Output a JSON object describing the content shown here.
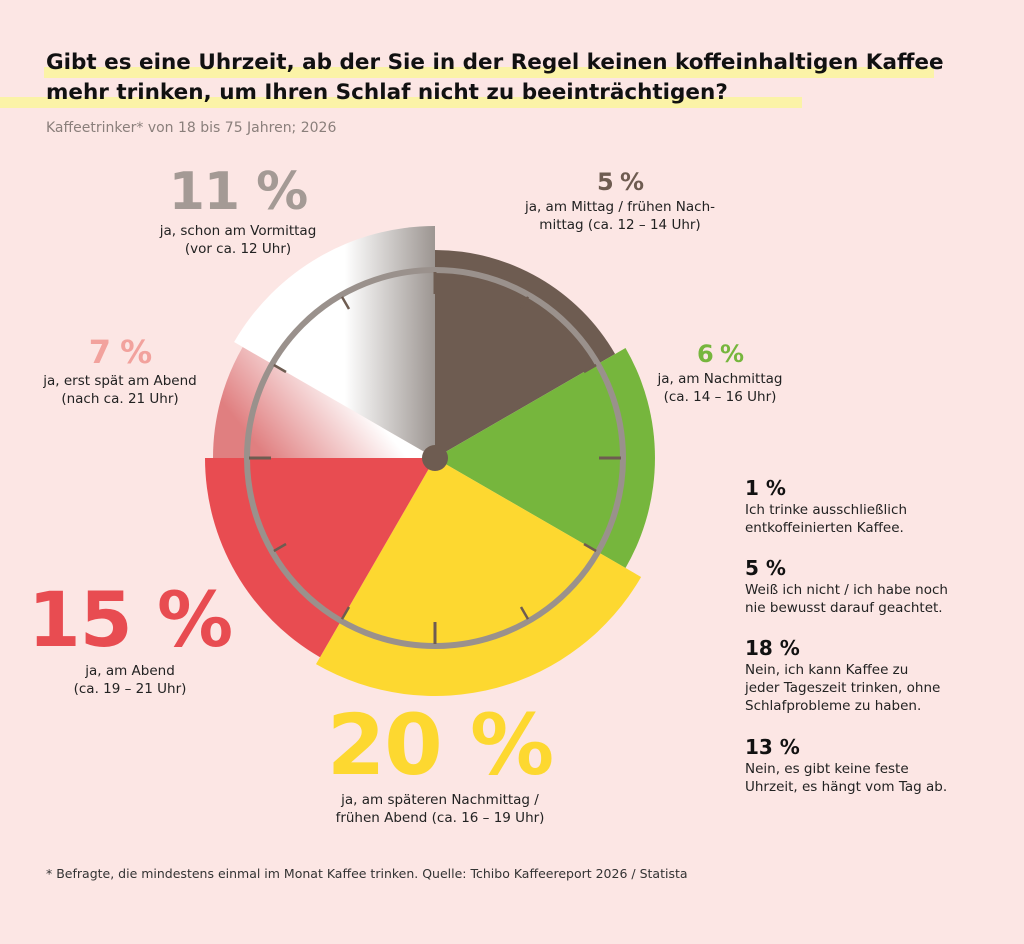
{
  "title_line1": "Gibt es eine Uhrzeit, ab der Sie in der Regel keinen koffeinhaltigen Kaffee",
  "title_line2": "mehr trinken, um Ihren Schlaf nicht zu beeinträchtigen?",
  "subtitle": "Kaffeetrinker* von 18 bis 75 Jahren; 2026",
  "footnote": "* Befragte, die mindestens einmal im Monat Kaffee trinken. Quelle: Tchibo Kaffeereport 2026 / Statista",
  "chart_data": {
    "type": "pie",
    "slices": [
      {
        "label": "5 %",
        "value": 5,
        "desc": "ja, am Mittag / frühen Nach-\nmittag (ca. 12 – 14 Uhr)",
        "color": "#6e5c51"
      },
      {
        "label": "6 %",
        "value": 6,
        "desc": "ja, am Nachmittag\n(ca. 14 – 16 Uhr)",
        "color": "#76b63d"
      },
      {
        "label": "20 %",
        "value": 20,
        "desc": "ja, am späteren Nachmittag /\nfrühen Abend (ca. 16 – 19 Uhr)",
        "color": "#fdd830"
      },
      {
        "label": "15 %",
        "value": 15,
        "desc": "ja, am Abend\n(ca. 19 – 21 Uhr)",
        "color": "#e84c51"
      },
      {
        "label": "7 %",
        "value": 7,
        "desc": "ja, erst spät am Abend\n(nach ca. 21 Uhr)",
        "color": "#f2a29d"
      },
      {
        "label": "11 %",
        "value": 11,
        "desc": "ja, schon am Vormittag\n(vor ca. 12 Uhr)",
        "color": "#a49a95"
      }
    ],
    "other_answers": [
      {
        "label": "1 %",
        "value": 1,
        "desc": "Ich trinke ausschließlich\nentkoffeinierten Kaffee."
      },
      {
        "label": "5 %",
        "value": 5,
        "desc": "Weiß ich nicht / ich habe noch\nnie bewusst darauf geachtet."
      },
      {
        "label": "18 %",
        "value": 18,
        "desc": "Nein, ich kann Kaffee zu\njeder Tageszeit trinken, ohne\nSchlafprobleme zu haben."
      },
      {
        "label": "13 %",
        "value": 13,
        "desc": "Nein, es gibt keine feste\nUhrzeit, es hängt vom Tag ab."
      }
    ]
  }
}
